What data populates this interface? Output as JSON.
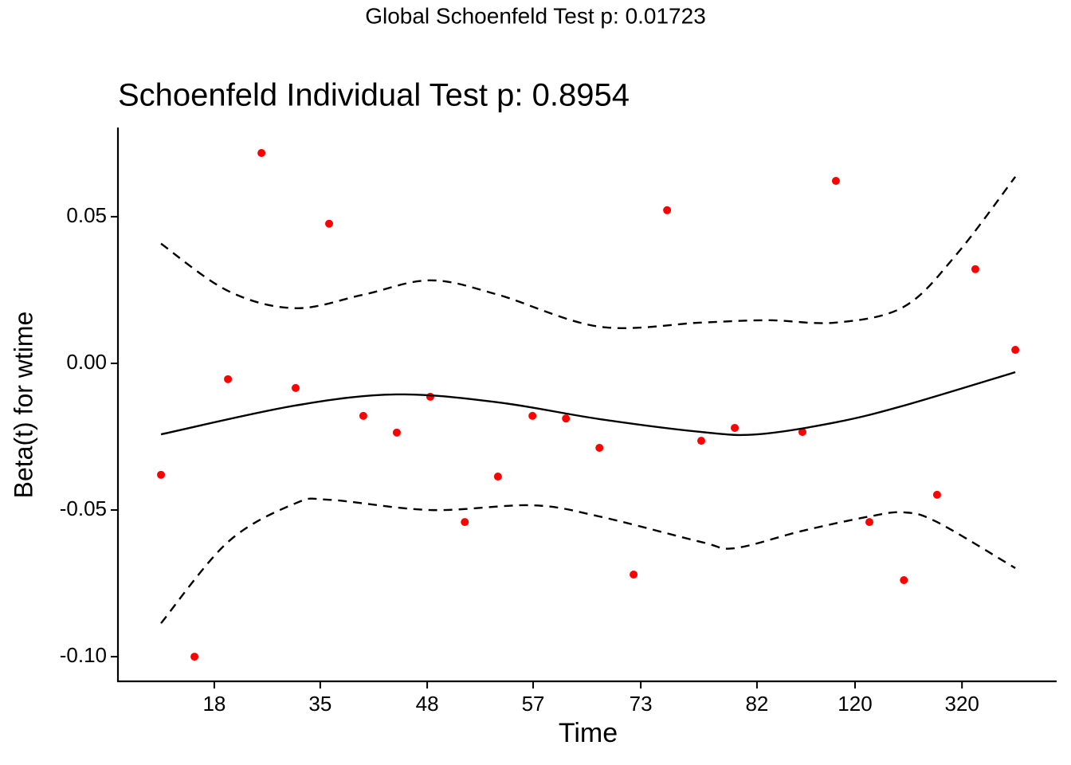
{
  "chart_data": {
    "type": "scatter",
    "suptitle": "Global Schoenfeld Test p: 0.01723",
    "title": "Schoenfeld Individual Test p: 0.8954",
    "x_label": "Time",
    "y_label": "Beta(t) for wtime",
    "xlim": [
      -0.26,
      27.21
    ],
    "ylim": [
      -0.1084,
      0.0804
    ],
    "xticks": [
      {
        "value": 2.56,
        "label": "18"
      },
      {
        "value": 5.66,
        "label": "35"
      },
      {
        "value": 8.79,
        "label": "48"
      },
      {
        "value": 11.89,
        "label": "57"
      },
      {
        "value": 15.04,
        "label": "73"
      },
      {
        "value": 18.44,
        "label": "82"
      },
      {
        "value": 21.31,
        "label": "120"
      },
      {
        "value": 24.44,
        "label": "320"
      }
    ],
    "yticks": [
      {
        "value": 0.05,
        "label": "0.05"
      },
      {
        "value": 0.0,
        "label": "0.00"
      },
      {
        "value": -0.05,
        "label": "-0.05"
      },
      {
        "value": -0.1,
        "label": "-0.10"
      }
    ],
    "grid": false,
    "series": [
      {
        "mode": "markers",
        "color": "#ff0000",
        "x": [
          1.0,
          1.98,
          2.96,
          3.94,
          4.94,
          5.92,
          6.92,
          7.9,
          8.88,
          9.89,
          10.86,
          11.87,
          12.85,
          13.83,
          14.83,
          15.81,
          16.81,
          17.79,
          19.77,
          20.75,
          21.73,
          22.74,
          23.71,
          24.83,
          26.0
        ],
        "values": [
          -0.038,
          -0.1,
          -0.0054,
          0.0717,
          -0.0084,
          0.0476,
          -0.0179,
          -0.0236,
          -0.0114,
          -0.0541,
          -0.0386,
          -0.0179,
          -0.0188,
          -0.0288,
          -0.072,
          0.0522,
          -0.0264,
          -0.022,
          -0.0234,
          0.0622,
          -0.0541,
          -0.0739,
          -0.0448,
          0.0321,
          0.0046
        ]
      },
      {
        "mode": "solid",
        "color": "#000000",
        "x": [
          1.0,
          4.92,
          7.9,
          10.86,
          13.83,
          16.81,
          18.44,
          20.75,
          22.74,
          26.0
        ],
        "values": [
          -0.0242,
          -0.0144,
          -0.0106,
          -0.0133,
          -0.019,
          -0.0234,
          -0.0242,
          -0.0201,
          -0.0144,
          -0.003
        ]
      },
      {
        "mode": "dashed",
        "color": "#000000",
        "x": [
          1.0,
          2.96,
          4.92,
          6.92,
          8.88,
          10.86,
          13.83,
          16.81,
          18.77,
          20.75,
          22.74,
          24.27,
          26.0
        ],
        "values": [
          0.0408,
          0.0247,
          0.0188,
          0.0234,
          0.0283,
          0.0234,
          0.0125,
          0.0139,
          0.0147,
          0.0139,
          0.0193,
          0.037,
          0.0636
        ]
      },
      {
        "mode": "dashed",
        "color": "#000000",
        "x": [
          1.0,
          2.96,
          4.92,
          5.92,
          8.88,
          11.87,
          13.83,
          16.81,
          17.79,
          19.77,
          21.73,
          22.74,
          23.71,
          26.0
        ],
        "values": [
          -0.0886,
          -0.0609,
          -0.0478,
          -0.0465,
          -0.05,
          -0.0484,
          -0.0522,
          -0.0609,
          -0.063,
          -0.0571,
          -0.0522,
          -0.0508,
          -0.0541,
          -0.0698
        ]
      }
    ]
  }
}
